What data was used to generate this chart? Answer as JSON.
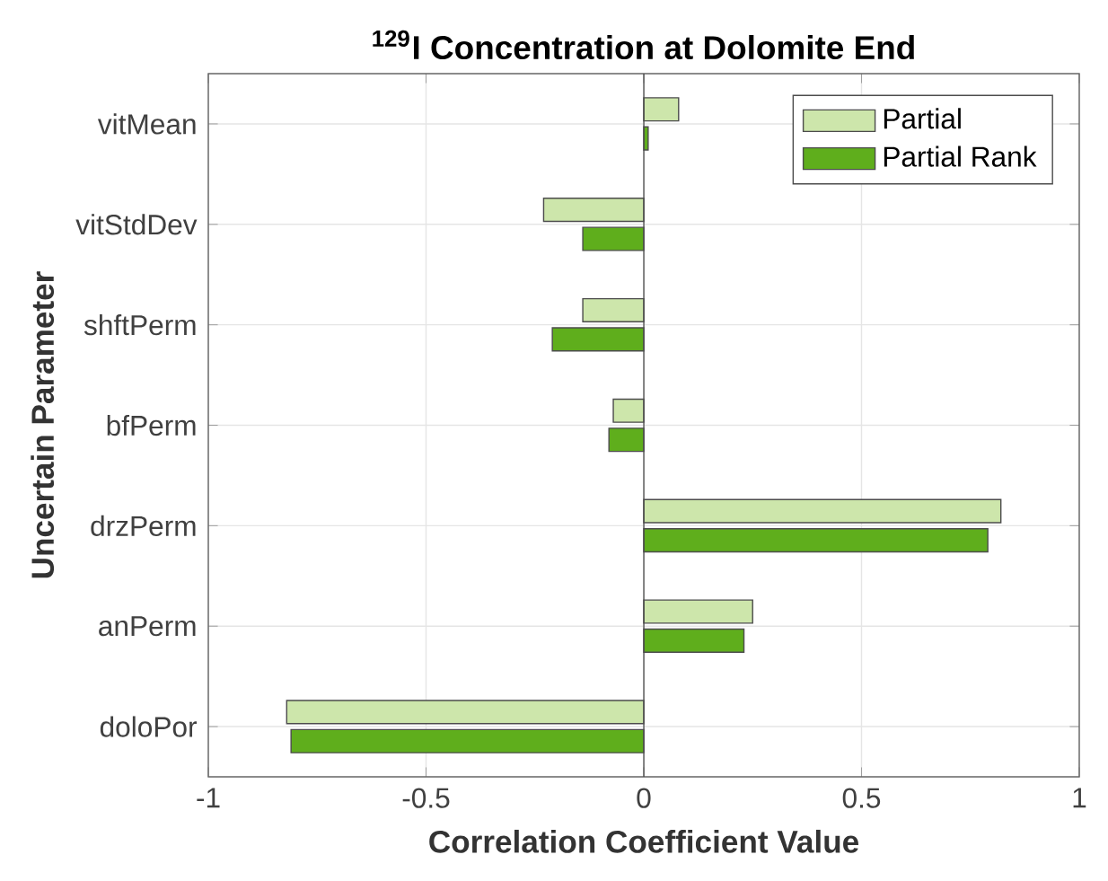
{
  "chart_data": {
    "type": "bar",
    "orientation": "horizontal",
    "title": "$^{129}$I Concentration at Dolomite End",
    "xlabel": "Correlation Coefficient Value",
    "ylabel": "Uncertain Parameter",
    "categories": [
      "vitMean",
      "vitStdDev",
      "shftPerm",
      "bfPerm",
      "drzPerm",
      "anPerm",
      "doloPor"
    ],
    "series": [
      {
        "name": "Partial",
        "color": "#cde6ab",
        "values": [
          0.08,
          -0.23,
          -0.14,
          -0.07,
          0.82,
          0.25,
          -0.82
        ]
      },
      {
        "name": "Partial Rank",
        "color": "#5fae1c",
        "values": [
          0.01,
          -0.14,
          -0.21,
          -0.08,
          0.79,
          0.23,
          -0.81
        ]
      }
    ],
    "xlim": [
      -1,
      1
    ],
    "xticks": [
      -1,
      -0.5,
      0,
      0.5,
      1
    ],
    "grid": true,
    "legend": "top right"
  }
}
